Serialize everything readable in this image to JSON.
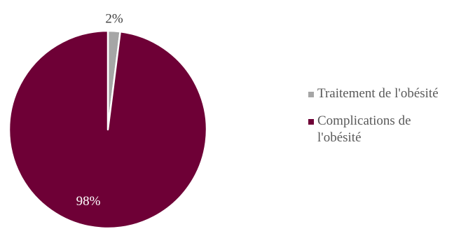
{
  "chart_data": {
    "type": "pie",
    "categories": [
      "Traitement de l'obésité",
      "Complications de l'obésité"
    ],
    "values": [
      2,
      98
    ],
    "data_labels": [
      "2%",
      "98%"
    ],
    "colors": [
      "#A6A6A6",
      "#6E0036"
    ],
    "label_colors": [
      "#404040",
      "#FFFFFF"
    ],
    "title": "",
    "legend_position": "right"
  }
}
